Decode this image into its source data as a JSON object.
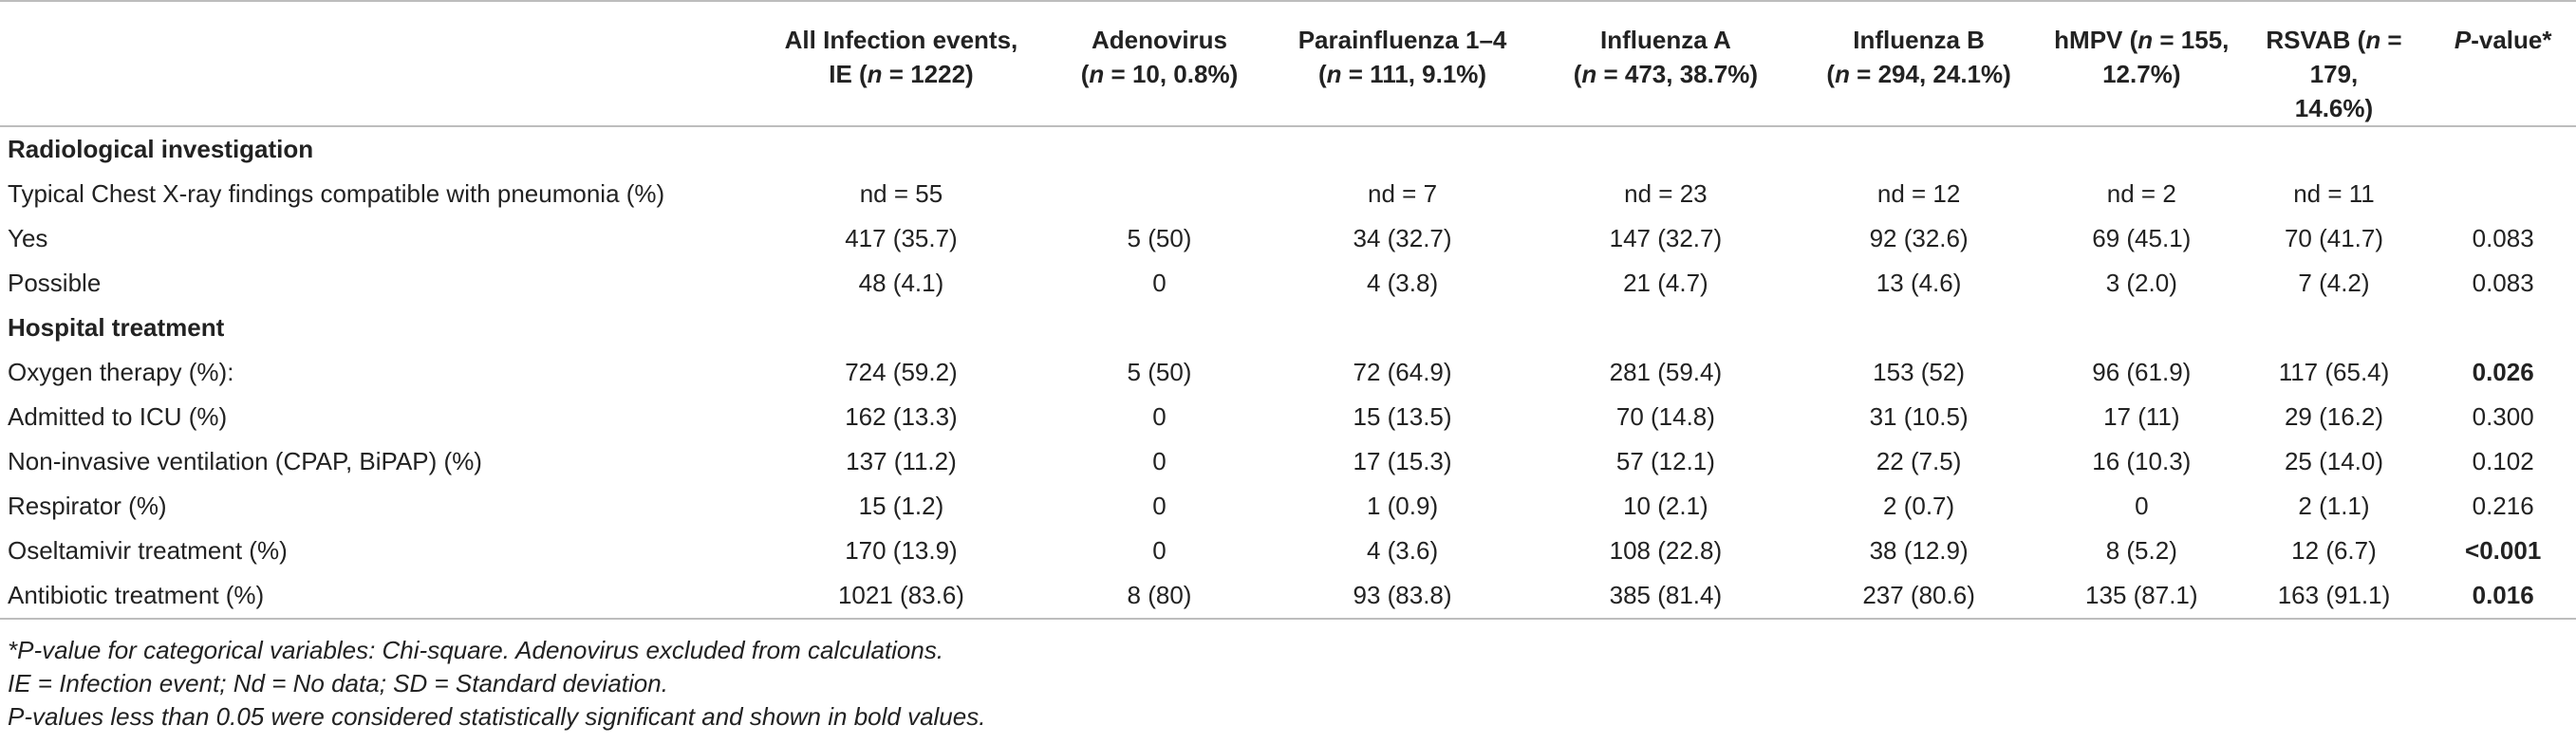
{
  "headers": [
    {
      "pre": "",
      "line1": "",
      "line2": ""
    },
    {
      "line1": "All Infection events,",
      "line2a": "IE (",
      "ital": "n",
      "line2b": " = 1222)"
    },
    {
      "line1": "Adenovirus",
      "line2a": "(",
      "ital": "n",
      "line2b": " = 10, 0.8%)"
    },
    {
      "line1": "Parainfluenza 1–4",
      "line2a": "(",
      "ital": "n",
      "line2b": " = 111, 9.1%)"
    },
    {
      "line1": "Influenza A",
      "line2a": "(",
      "ital": "n",
      "line2b": " = 473, 38.7%)"
    },
    {
      "line1": "Influenza B",
      "line2a": "(",
      "ital": "n",
      "line2b": " = 294, 24.1%)"
    },
    {
      "line1a": "hMPV (",
      "ital": "n",
      "line1b": " = 155,",
      "line2": "12.7%)"
    },
    {
      "line1a": "RSVAB (",
      "ital": "n",
      "line1b": " = 179,",
      "line2": "14.6%)"
    },
    {
      "ital": "P",
      "line1b": "-value*"
    }
  ],
  "rows": [
    {
      "type": "section",
      "label": "Radiological investigation"
    },
    {
      "type": "data",
      "label": "Typical Chest X-ray findings compatible with pneumonia (%)",
      "cells": [
        "nd = 55",
        "",
        "nd = 7",
        "nd = 23",
        "nd = 12",
        "nd = 2",
        "nd = 11",
        ""
      ],
      "bold_p": false
    },
    {
      "type": "data",
      "label": "Yes",
      "cells": [
        "417 (35.7)",
        "5 (50)",
        "34 (32.7)",
        "147 (32.7)",
        "92 (32.6)",
        "69 (45.1)",
        "70 (41.7)",
        "0.083"
      ],
      "bold_p": false
    },
    {
      "type": "data",
      "label": "Possible",
      "cells": [
        "48 (4.1)",
        "0",
        "4 (3.8)",
        "21 (4.7)",
        "13 (4.6)",
        "3 (2.0)",
        "7 (4.2)",
        "0.083"
      ],
      "bold_p": false
    },
    {
      "type": "section",
      "label": "Hospital treatment"
    },
    {
      "type": "data",
      "label": "Oxygen therapy (%):",
      "cells": [
        "724 (59.2)",
        "5 (50)",
        "72 (64.9)",
        "281 (59.4)",
        "153 (52)",
        "96 (61.9)",
        "117 (65.4)",
        "0.026"
      ],
      "bold_p": true
    },
    {
      "type": "data",
      "label": "Admitted to ICU (%)",
      "cells": [
        "162 (13.3)",
        "0",
        "15 (13.5)",
        "70 (14.8)",
        "31 (10.5)",
        "17 (11)",
        "29 (16.2)",
        "0.300"
      ],
      "bold_p": false
    },
    {
      "type": "data",
      "label": "Non-invasive ventilation (CPAP, BiPAP) (%)",
      "cells": [
        "137 (11.2)",
        "0",
        "17 (15.3)",
        "57 (12.1)",
        "22 (7.5)",
        "16 (10.3)",
        "25 (14.0)",
        "0.102"
      ],
      "bold_p": false
    },
    {
      "type": "data",
      "label": "Respirator (%)",
      "cells": [
        "15 (1.2)",
        "0",
        "1 (0.9)",
        "10 (2.1)",
        "2 (0.7)",
        "0",
        "2 (1.1)",
        "0.216"
      ],
      "bold_p": false
    },
    {
      "type": "data",
      "label": "Oseltamivir treatment (%)",
      "cells": [
        "170 (13.9)",
        "0",
        "4 (3.6)",
        "108 (22.8)",
        "38 (12.9)",
        "8 (5.2)",
        "12 (6.7)",
        "<0.001"
      ],
      "bold_p": true
    },
    {
      "type": "data",
      "label": "Antibiotic treatment (%)",
      "cells": [
        "1021 (83.6)",
        "8 (80)",
        "93 (83.8)",
        "385 (81.4)",
        "237 (80.6)",
        "135 (87.1)",
        "163 (91.1)",
        "0.016"
      ],
      "bold_p": true
    }
  ],
  "footnotes": [
    "*P-value for categorical variables: Chi-square. Adenovirus excluded from calculations.",
    "IE = Infection event; Nd = No data; SD = Standard deviation.",
    "P-values less than 0.05 were considered statistically significant and shown in bold values."
  ]
}
